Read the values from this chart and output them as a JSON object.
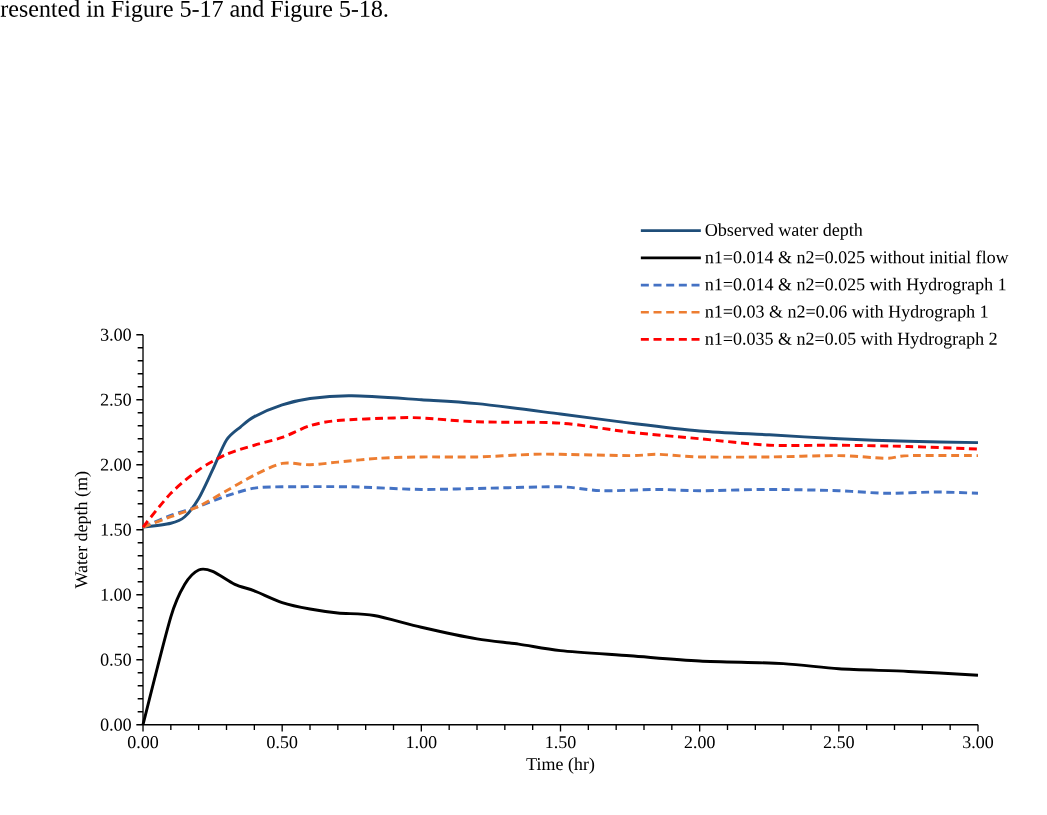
{
  "chart_data": {
    "type": "line",
    "xlabel": "Time (hr)",
    "ylabel": "Water depth (m)",
    "annotations": [
      "resented in Figure 5-17 and Figure 5-18."
    ],
    "xlim": [
      0,
      3
    ],
    "ylim": [
      0,
      3
    ],
    "xticks": [
      {
        "value": 0,
        "label": "0.00"
      },
      {
        "value": 0.5,
        "label": "0.50"
      },
      {
        "value": 1,
        "label": "1.00"
      },
      {
        "value": 1.5,
        "label": "1.50"
      },
      {
        "value": 2,
        "label": "2.00"
      },
      {
        "value": 2.5,
        "label": "2.50"
      },
      {
        "value": 3,
        "label": "3.00"
      }
    ],
    "yticks": [
      {
        "value": 0,
        "label": "0.00"
      },
      {
        "value": 0.5,
        "label": "0.50"
      },
      {
        "value": 1,
        "label": "1.00"
      },
      {
        "value": 1.5,
        "label": "1.50"
      },
      {
        "value": 2,
        "label": "2.00"
      },
      {
        "value": 2.5,
        "label": "2.50"
      },
      {
        "value": 3,
        "label": "3.00"
      }
    ],
    "grid": false,
    "legend": "top right",
    "marker": "none",
    "series": [
      {
        "name": "Observed water depth",
        "color": "#1f4e79",
        "line_style": "solid",
        "x": [
          0,
          0.1,
          0.15,
          0.2,
          0.25,
          0.3,
          0.35,
          0.4,
          0.5,
          0.6,
          0.75,
          1.0,
          1.2,
          1.5,
          1.75,
          2.0,
          2.25,
          2.5,
          2.75,
          3.0
        ],
        "values": [
          1.52,
          1.55,
          1.6,
          1.74,
          1.96,
          2.19,
          2.29,
          2.37,
          2.46,
          2.51,
          2.53,
          2.5,
          2.47,
          2.39,
          2.32,
          2.26,
          2.23,
          2.2,
          2.18,
          2.17
        ]
      },
      {
        "name": "n1=0.014 & n2=0.025 without initial flow",
        "color": "#000000",
        "line_style": "solid",
        "x": [
          0,
          0.1,
          0.15,
          0.2,
          0.25,
          0.33,
          0.4,
          0.5,
          0.6,
          0.7,
          0.83,
          1.0,
          1.2,
          1.35,
          1.5,
          1.75,
          2.0,
          2.3,
          2.5,
          2.75,
          3.0
        ],
        "values": [
          0,
          0.83,
          1.08,
          1.19,
          1.18,
          1.08,
          1.03,
          0.94,
          0.89,
          0.86,
          0.84,
          0.75,
          0.66,
          0.62,
          0.57,
          0.53,
          0.49,
          0.47,
          0.43,
          0.41,
          0.38
        ]
      },
      {
        "name": "n1=0.014 & n2=0.025 with Hydrograph 1",
        "color": "#4472c4",
        "line_style": "dashed",
        "x": [
          0,
          0.1,
          0.2,
          0.3,
          0.4,
          0.5,
          0.75,
          1.0,
          1.25,
          1.5,
          1.65,
          1.85,
          2.0,
          2.25,
          2.5,
          2.67,
          2.85,
          3.0
        ],
        "values": [
          1.52,
          1.61,
          1.68,
          1.76,
          1.82,
          1.83,
          1.83,
          1.81,
          1.82,
          1.83,
          1.8,
          1.81,
          1.8,
          1.81,
          1.8,
          1.78,
          1.79,
          1.78
        ]
      },
      {
        "name": "n1=0.03 & n2=0.06 with Hydrograph 1",
        "color": "#ed7d31",
        "line_style": "dashed",
        "x": [
          0,
          0.1,
          0.2,
          0.3,
          0.4,
          0.5,
          0.6,
          0.7,
          0.85,
          1.0,
          1.2,
          1.4,
          1.5,
          1.75,
          1.85,
          2.0,
          2.25,
          2.5,
          2.67,
          2.75,
          3.0
        ],
        "values": [
          1.52,
          1.6,
          1.68,
          1.8,
          1.92,
          2.01,
          2.0,
          2.02,
          2.05,
          2.06,
          2.06,
          2.08,
          2.08,
          2.07,
          2.08,
          2.06,
          2.06,
          2.07,
          2.05,
          2.07,
          2.07
        ]
      },
      {
        "name": "n1=0.035 & n2=0.05 with Hydrograph 2",
        "color": "#ff0000",
        "line_style": "dashed",
        "x": [
          0,
          0.1,
          0.2,
          0.3,
          0.4,
          0.5,
          0.6,
          0.7,
          0.9,
          1.0,
          1.2,
          1.5,
          1.75,
          2.0,
          2.25,
          2.5,
          2.75,
          3.0
        ],
        "values": [
          1.52,
          1.78,
          1.96,
          2.08,
          2.15,
          2.21,
          2.3,
          2.34,
          2.36,
          2.36,
          2.33,
          2.32,
          2.25,
          2.2,
          2.15,
          2.15,
          2.14,
          2.12
        ]
      }
    ]
  }
}
